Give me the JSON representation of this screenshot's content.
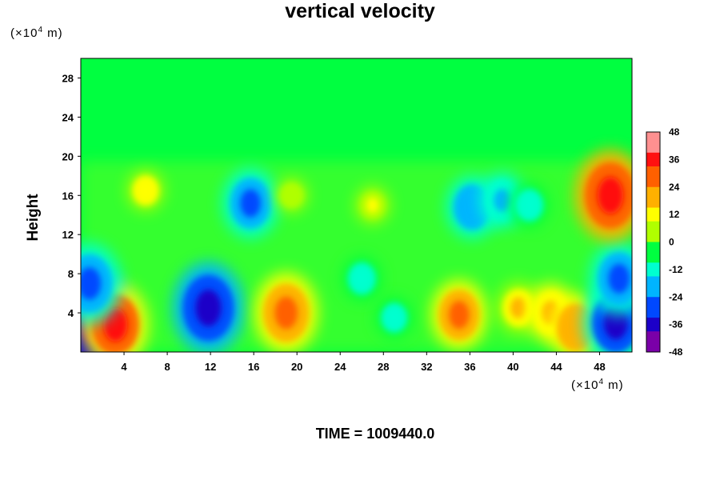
{
  "chart_data": {
    "type": "heatmap",
    "title": "vertical velocity",
    "ylabel": "Height",
    "y_unit": "(×10⁴ m)",
    "x_unit": "(×10⁴ m)",
    "time_label": "TIME = 1009440.0",
    "xlim": [
      0,
      51
    ],
    "ylim": [
      0,
      30
    ],
    "x_ticks": [
      4,
      8,
      12,
      16,
      20,
      24,
      28,
      32,
      36,
      40,
      44,
      48
    ],
    "y_ticks": [
      4,
      8,
      12,
      16,
      20,
      24,
      28
    ],
    "colorbar": {
      "range": [
        -48,
        48
      ],
      "ticks": [
        48,
        36,
        24,
        12,
        0,
        -12,
        -24,
        -36,
        -48
      ],
      "colors": [
        "#7a00a8",
        "#1c00c8",
        "#0048ff",
        "#00b4ff",
        "#00ffd0",
        "#00ff40",
        "#b0ff00",
        "#ffff00",
        "#ffb000",
        "#ff6000",
        "#ff1010",
        "#ff9090"
      ]
    },
    "features": [
      {
        "x": 1.2,
        "y": 3.0,
        "value": -48
      },
      {
        "x": 3.2,
        "y": 2.8,
        "value": 36
      },
      {
        "x": 11.8,
        "y": 4.5,
        "value": -40
      },
      {
        "x": 19.0,
        "y": 4.0,
        "value": 34
      },
      {
        "x": 29.0,
        "y": 3.5,
        "value": -12
      },
      {
        "x": 35.0,
        "y": 3.8,
        "value": 28
      },
      {
        "x": 40.5,
        "y": 4.5,
        "value": 18
      },
      {
        "x": 43.5,
        "y": 4.0,
        "value": 22
      },
      {
        "x": 45.8,
        "y": 2.5,
        "value": 26
      },
      {
        "x": 49.5,
        "y": 3.0,
        "value": -36
      },
      {
        "x": 49.8,
        "y": 7.5,
        "value": -30
      },
      {
        "x": 0.8,
        "y": 7.0,
        "value": -34
      },
      {
        "x": 49.0,
        "y": 16.0,
        "value": 40
      },
      {
        "x": 15.7,
        "y": 15.2,
        "value": -28
      },
      {
        "x": 36.2,
        "y": 14.8,
        "value": -24
      },
      {
        "x": 39.0,
        "y": 15.5,
        "value": -20
      },
      {
        "x": 41.5,
        "y": 15.0,
        "value": -14
      },
      {
        "x": 26.0,
        "y": 7.5,
        "value": -14
      },
      {
        "x": 6.0,
        "y": 16.5,
        "value": 12
      },
      {
        "x": 27.0,
        "y": 15.0,
        "value": 10
      },
      {
        "x": 19.5,
        "y": 16.0,
        "value": 8
      }
    ]
  }
}
